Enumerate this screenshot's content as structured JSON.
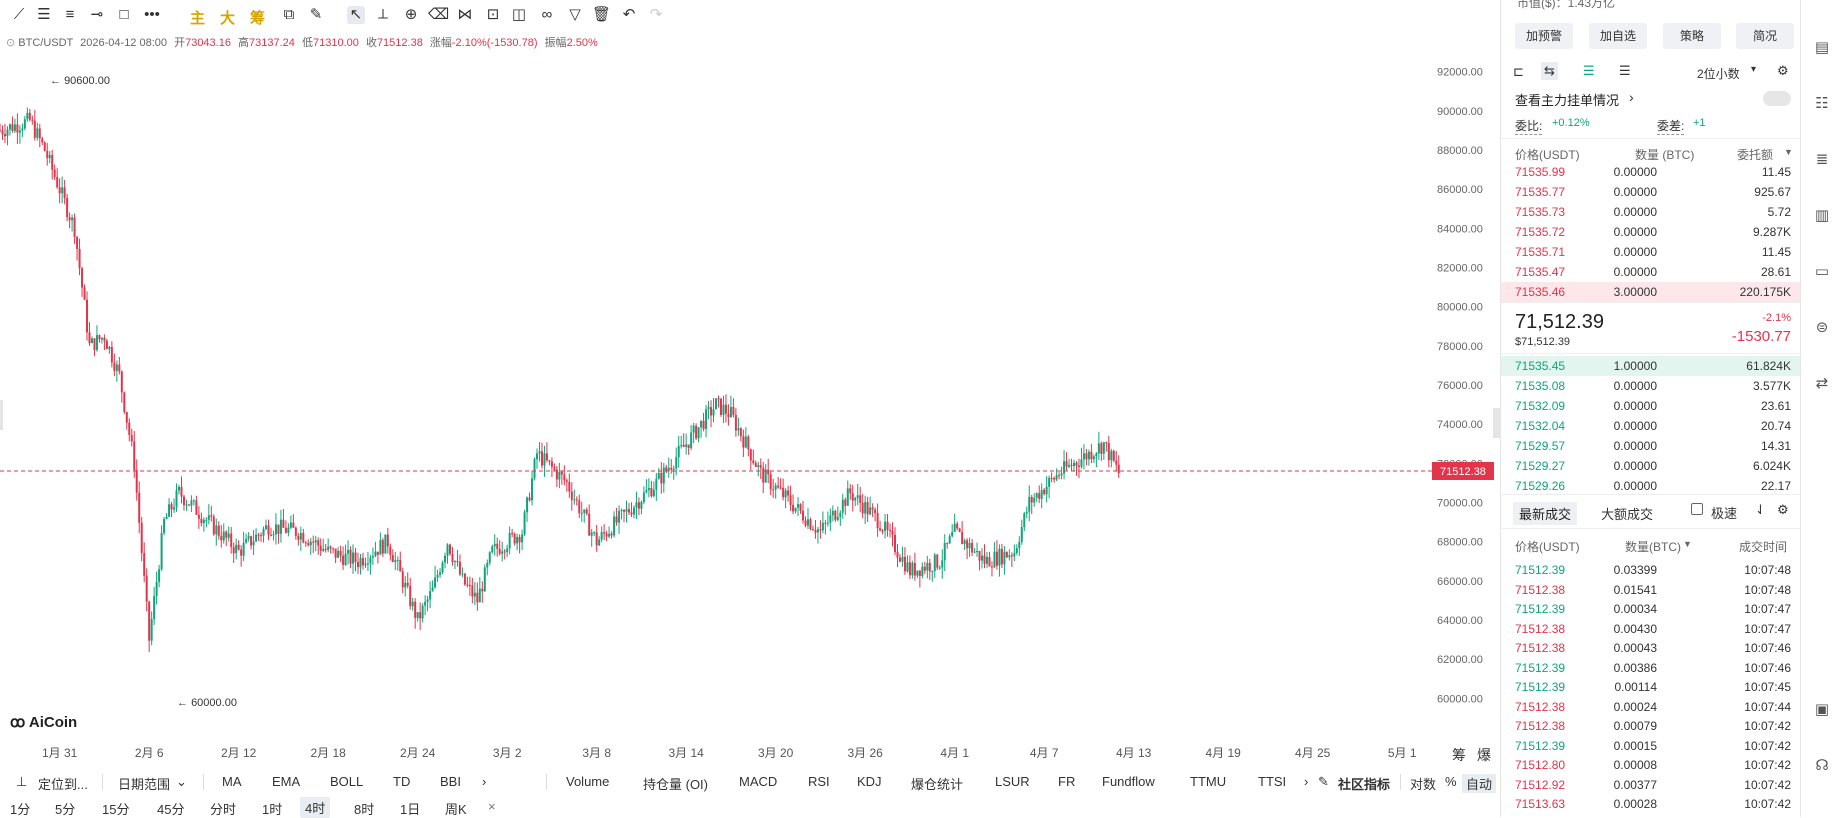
{
  "toolbar": {
    "tools": [
      "trend-line-icon",
      "horizontal-lines-icon",
      "parallel-lines-icon",
      "horizontal-ray-icon",
      "rectangle-icon",
      "more-dots-icon"
    ],
    "cn_buttons": [
      "主",
      "大",
      "筹"
    ]
  },
  "ohlc": {
    "symbol": "BTC/USDT",
    "datetime": "2026-04-12 08:00",
    "open_label": "开",
    "open": "73043.16",
    "high_label": "高",
    "high": "73137.24",
    "low_label": "低",
    "low": "71310.00",
    "close_label": "收",
    "close": "71512.38",
    "change_label": "涨幅",
    "change": "-2.10%(-1530.78)",
    "amp_label": "振幅",
    "amp": "2.50%"
  },
  "chart": {
    "y_ticks": [
      "92000.00",
      "90000.00",
      "88000.00",
      "86000.00",
      "84000.00",
      "82000.00",
      "80000.00",
      "78000.00",
      "76000.00",
      "74000.00",
      "72000.00",
      "70000.00",
      "68000.00",
      "66000.00",
      "64000.00",
      "62000.00",
      "60000.00"
    ],
    "x_ticks": [
      "1月 31",
      "2月 6",
      "2月 12",
      "2月 18",
      "2月 24",
      "3月 2",
      "3月 8",
      "3月 14",
      "3月 20",
      "3月 26",
      "4月 1",
      "4月 7",
      "4月 13",
      "4月 19",
      "4月 25",
      "5月 1"
    ],
    "high_marker": "90600.00",
    "low_marker": "60000.00",
    "last_price": "71512.38",
    "right_labels": [
      "筹",
      "爆"
    ],
    "watermark": "AiCoin"
  },
  "chart_data": {
    "type": "candlestick",
    "ylim": [
      59000,
      93000
    ],
    "y_ticks": [
      92000,
      90000,
      88000,
      86000,
      84000,
      82000,
      80000,
      78000,
      76000,
      74000,
      72000,
      70000,
      68000,
      66000,
      64000,
      62000,
      60000
    ],
    "x_ticks": [
      "1月 31",
      "2月 6",
      "2月 12",
      "2月 18",
      "2月 24",
      "3月 2",
      "3月 8",
      "3月 14",
      "3月 20",
      "3月 26",
      "4月 1",
      "4月 7",
      "4月 13",
      "4月 19",
      "4月 25",
      "5月 1"
    ],
    "x_range": [
      "2026-01-27",
      "2026-05-03"
    ],
    "interval": "4时",
    "max_high": 90600.0,
    "min_low": 60000.0,
    "last_close": 71512.38,
    "close_path": [
      {
        "t": "2026-01-27",
        "p": 89000
      },
      {
        "t": "2026-01-29",
        "p": 89500
      },
      {
        "t": "2026-01-30",
        "p": 88000
      },
      {
        "t": "2026-01-31",
        "p": 86000
      },
      {
        "t": "2026-02-01",
        "p": 84000
      },
      {
        "t": "2026-02-02",
        "p": 78000
      },
      {
        "t": "2026-02-03",
        "p": 78500
      },
      {
        "t": "2026-02-04",
        "p": 76500
      },
      {
        "t": "2026-02-05",
        "p": 72000
      },
      {
        "t": "2026-02-06",
        "p": 63000
      },
      {
        "t": "2026-02-07",
        "p": 69000
      },
      {
        "t": "2026-02-08",
        "p": 70500
      },
      {
        "t": "2026-02-10",
        "p": 69000
      },
      {
        "t": "2026-02-12",
        "p": 67500
      },
      {
        "t": "2026-02-14",
        "p": 68800
      },
      {
        "t": "2026-02-16",
        "p": 68500
      },
      {
        "t": "2026-02-18",
        "p": 67500
      },
      {
        "t": "2026-02-20",
        "p": 67000
      },
      {
        "t": "2026-02-22",
        "p": 68000
      },
      {
        "t": "2026-02-24",
        "p": 64000
      },
      {
        "t": "2026-02-25",
        "p": 65500
      },
      {
        "t": "2026-02-26",
        "p": 68000
      },
      {
        "t": "2026-02-27",
        "p": 66000
      },
      {
        "t": "2026-02-28",
        "p": 65000
      },
      {
        "t": "2026-03-01",
        "p": 67500
      },
      {
        "t": "2026-03-03",
        "p": 68500
      },
      {
        "t": "2026-03-04",
        "p": 72500
      },
      {
        "t": "2026-03-06",
        "p": 71000
      },
      {
        "t": "2026-03-08",
        "p": 68000
      },
      {
        "t": "2026-03-10",
        "p": 69500
      },
      {
        "t": "2026-03-12",
        "p": 71000
      },
      {
        "t": "2026-03-14",
        "p": 73000
      },
      {
        "t": "2026-03-16",
        "p": 75000
      },
      {
        "t": "2026-03-17",
        "p": 74500
      },
      {
        "t": "2026-03-19",
        "p": 71500
      },
      {
        "t": "2026-03-21",
        "p": 70000
      },
      {
        "t": "2026-03-23",
        "p": 68500
      },
      {
        "t": "2026-03-25",
        "p": 70500
      },
      {
        "t": "2026-03-27",
        "p": 69000
      },
      {
        "t": "2026-03-29",
        "p": 66500
      },
      {
        "t": "2026-03-31",
        "p": 67000
      },
      {
        "t": "2026-04-01",
        "p": 68500
      },
      {
        "t": "2026-04-03",
        "p": 67000
      },
      {
        "t": "2026-04-05",
        "p": 67500
      },
      {
        "t": "2026-04-06",
        "p": 70000
      },
      {
        "t": "2026-04-08",
        "p": 71500
      },
      {
        "t": "2026-04-10",
        "p": 72500
      },
      {
        "t": "2026-04-11",
        "p": 73000
      },
      {
        "t": "2026-04-12",
        "p": 71512
      }
    ]
  },
  "bottom": {
    "locate": "定位到...",
    "date_range": "日期范围",
    "indicators_main": [
      "MA",
      "EMA",
      "BOLL",
      "TD",
      "BBI"
    ],
    "indicators_sub": [
      "Volume",
      "持仓量 (OI)",
      "MACD",
      "RSI",
      "KDJ",
      "爆仓统计",
      "LSUR",
      "FR",
      "Fundflow",
      "TTMU",
      "TTSI"
    ],
    "community": "社区指标",
    "log": "对数",
    "percent": "%",
    "auto": "自动",
    "timeframes": [
      "1分",
      "5分",
      "15分",
      "45分",
      "分时",
      "1时",
      "4时",
      "8时",
      "1日",
      "周K"
    ],
    "active_tf": "4时"
  },
  "panel": {
    "market_cap": "市值($)：1.43万亿",
    "buttons": [
      "加预警",
      "加自选",
      "策略",
      "简况"
    ],
    "decimals": "2位小数",
    "main_orders": "查看主力挂单情况",
    "ratio_label": "委比:",
    "ratio_value": "+0.12%",
    "diff_label": "委差:",
    "diff_value": "+1",
    "headers": [
      "价格(USDT)",
      "数量 (BTC)",
      "委托额"
    ],
    "asks": [
      [
        "71535.99",
        "0.00000",
        "11.45"
      ],
      [
        "71535.77",
        "0.00000",
        "925.67"
      ],
      [
        "71535.73",
        "0.00000",
        "5.72"
      ],
      [
        "71535.72",
        "0.00000",
        "9.287K"
      ],
      [
        "71535.71",
        "0.00000",
        "11.45"
      ],
      [
        "71535.47",
        "0.00000",
        "28.61"
      ],
      [
        "71535.46",
        "3.00000",
        "220.175K"
      ]
    ],
    "last_price": "71,512.39",
    "last_usd": "$71,512.39",
    "change_pct": "-2.1%",
    "change_abs": "-1530.77",
    "bids": [
      [
        "71535.45",
        "1.00000",
        "61.824K"
      ],
      [
        "71535.08",
        "0.00000",
        "3.577K"
      ],
      [
        "71532.09",
        "0.00000",
        "23.61"
      ],
      [
        "71532.04",
        "0.00000",
        "20.74"
      ],
      [
        "71529.57",
        "0.00000",
        "14.31"
      ],
      [
        "71529.27",
        "0.00000",
        "6.024K"
      ],
      [
        "71529.26",
        "0.00000",
        "22.17"
      ]
    ],
    "trade_tabs": [
      "最新成交",
      "大额成交"
    ],
    "speed": "极速",
    "trade_headers": [
      "价格(USDT)",
      "数量(BTC)",
      "成交时间"
    ],
    "trades": [
      [
        "71512.39",
        "0.03399",
        "10:07:48",
        "g"
      ],
      [
        "71512.38",
        "0.01541",
        "10:07:48",
        "r"
      ],
      [
        "71512.39",
        "0.00034",
        "10:07:47",
        "g"
      ],
      [
        "71512.38",
        "0.00430",
        "10:07:47",
        "r"
      ],
      [
        "71512.38",
        "0.00043",
        "10:07:46",
        "r"
      ],
      [
        "71512.39",
        "0.00386",
        "10:07:46",
        "g"
      ],
      [
        "71512.39",
        "0.00114",
        "10:07:45",
        "g"
      ],
      [
        "71512.38",
        "0.00024",
        "10:07:44",
        "r"
      ],
      [
        "71512.38",
        "0.00079",
        "10:07:42",
        "r"
      ],
      [
        "71512.39",
        "0.00015",
        "10:07:42",
        "g"
      ],
      [
        "71512.80",
        "0.00008",
        "10:07:42",
        "r"
      ],
      [
        "71512.92",
        "0.00377",
        "10:07:42",
        "r"
      ],
      [
        "71513.63",
        "0.00028",
        "10:07:42",
        "r"
      ]
    ]
  },
  "sidebar": {
    "icons": [
      "clipboard-icon",
      "document-icon",
      "list-icon",
      "chart-icon",
      "card-icon",
      "robot-icon",
      "exchange-icon",
      "layout-icon",
      "headset-icon"
    ]
  }
}
